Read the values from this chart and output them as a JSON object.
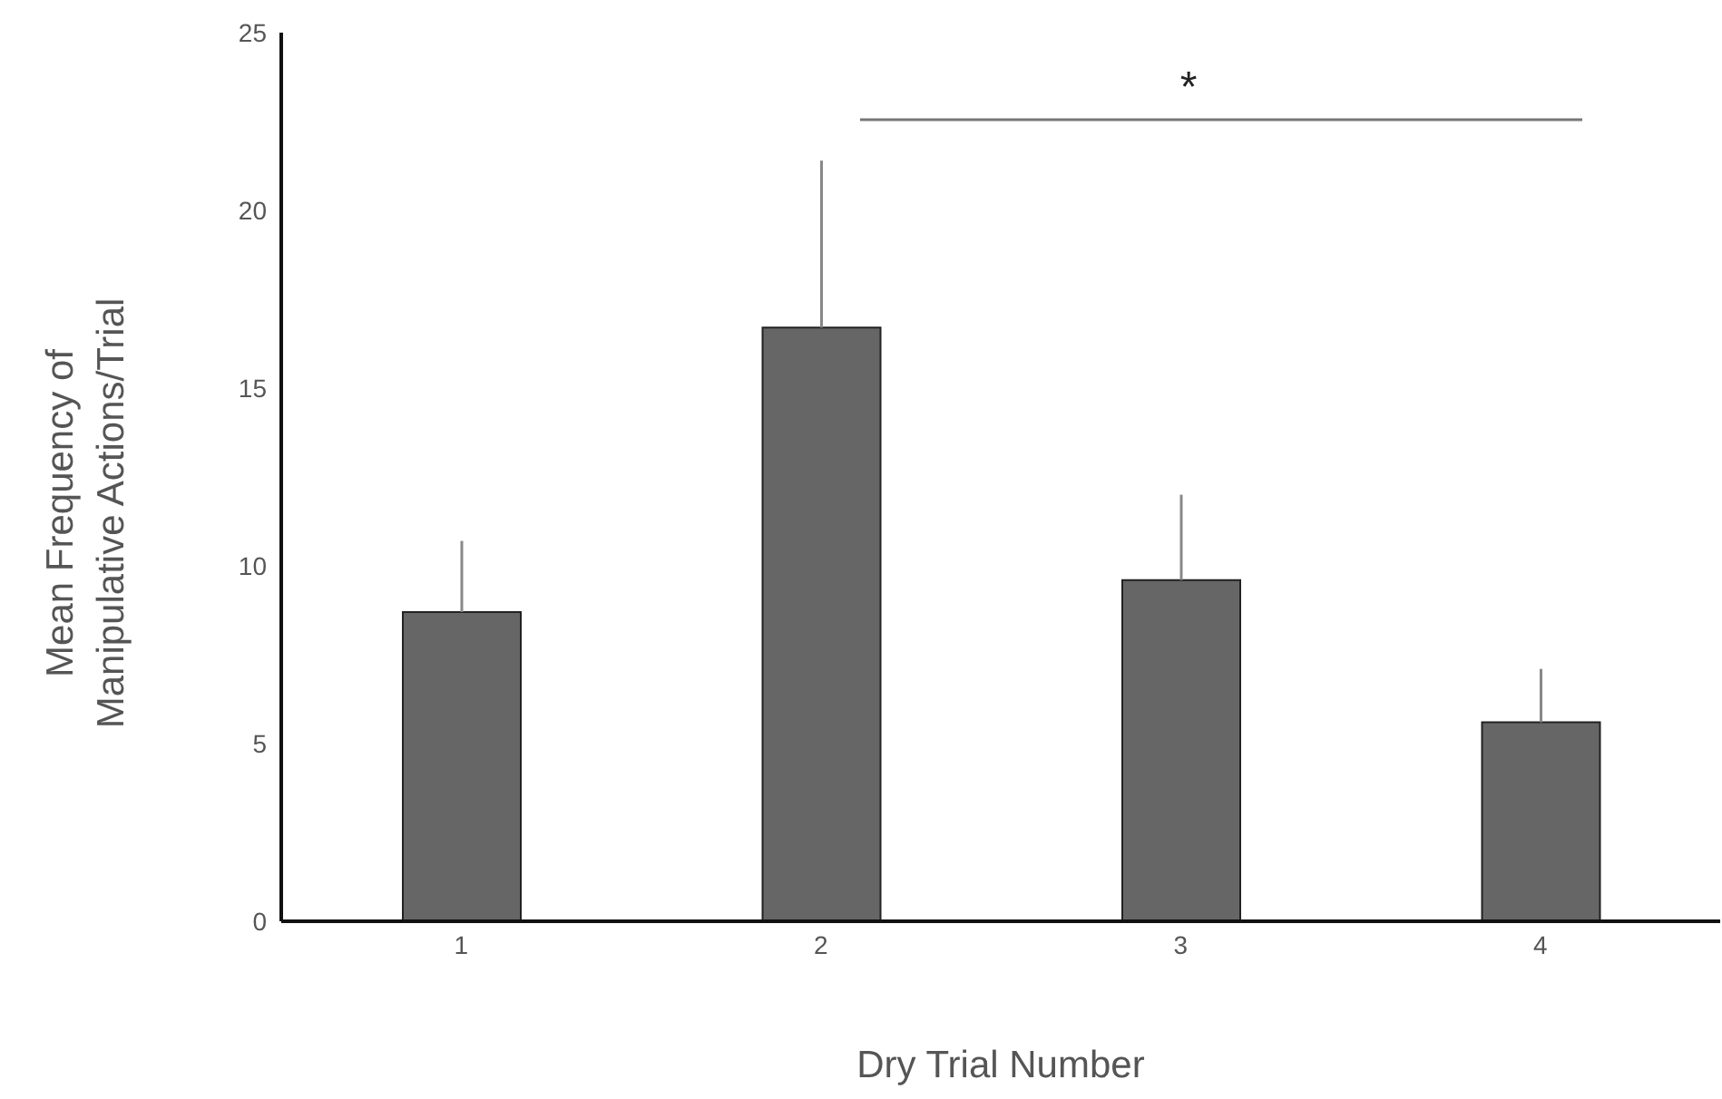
{
  "chart_data": {
    "type": "bar",
    "xlabel": "Dry Trial Number",
    "ylabel": "Mean Frequency of Manipulative Actions/Trial",
    "categories": [
      "1",
      "2",
      "3",
      "4"
    ],
    "values": [
      8.7,
      16.7,
      9.6,
      5.6
    ],
    "errors": [
      [
        8.7,
        10.7
      ],
      [
        16.7,
        21.4
      ],
      [
        9.6,
        12.0
      ],
      [
        5.6,
        7.1
      ]
    ],
    "color": "#666666",
    "ylim": [
      0,
      25
    ],
    "yticks": [
      0,
      5,
      10,
      15,
      20,
      25
    ],
    "annotations": [
      "*"
    ]
  }
}
